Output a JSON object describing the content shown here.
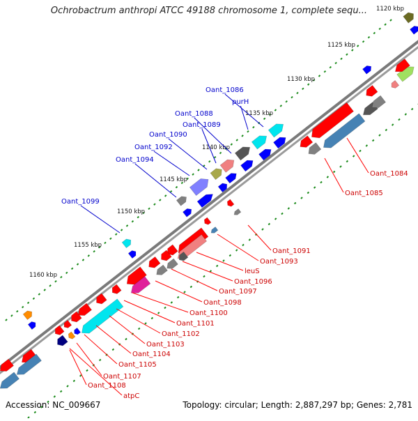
{
  "title": "Ochrobactrum anthropi ATCC 49188 chromosome 1, complete sequ...",
  "footer": {
    "accession": "Accession: NC_009667",
    "summary": "Topology: circular; Length: 2,887,297 bp; Genes: 2,781"
  },
  "colors": {
    "backbone": "#808080",
    "cds_red": "#ff0000",
    "label_red": "#cc0000",
    "label_blue": "#0000cc",
    "tick_green": "#1a8a1a",
    "gene_blue": "#0000ff",
    "gene_steelblue": "#4682b4",
    "gene_cyan": "#00e5ee",
    "gene_grey": "#808080",
    "gene_darkgrey": "#555555",
    "gene_pink": "#f08080",
    "gene_olive": "#a8a84a",
    "gene_purple": "#8080ff",
    "gene_magenta": "#e0209a",
    "gene_navy": "#000080",
    "gene_orange": "#ff8c00",
    "gene_lime": "#a0e060",
    "gene_darkolive": "#6b6b23"
  },
  "scale_ticks": [
    "1120 kbp",
    "1125 kbp",
    "1130 kbp",
    "1135 kbp",
    "1140 kbp",
    "1145 kbp",
    "1150 kbp",
    "1155 kbp",
    "1160 kbp"
  ],
  "labels_top": [
    "Oant_1086",
    "purH",
    "Oant_1088",
    "Oant_1089",
    "Oant_1090",
    "Oant_1092",
    "Oant_1094",
    "Oant_1099"
  ],
  "labels_bottom": [
    "Oant_1084",
    "Oant_1085",
    "Oant_1091",
    "Oant_1093",
    "leuS",
    "Oant_1096",
    "Oant_1097",
    "Oant_1098",
    "Oant_1100",
    "Oant_1101",
    "Oant_1102",
    "Oant_1103",
    "Oant_1104",
    "Oant_1105",
    "Oant_1107",
    "Oant_1108",
    "atpC"
  ]
}
